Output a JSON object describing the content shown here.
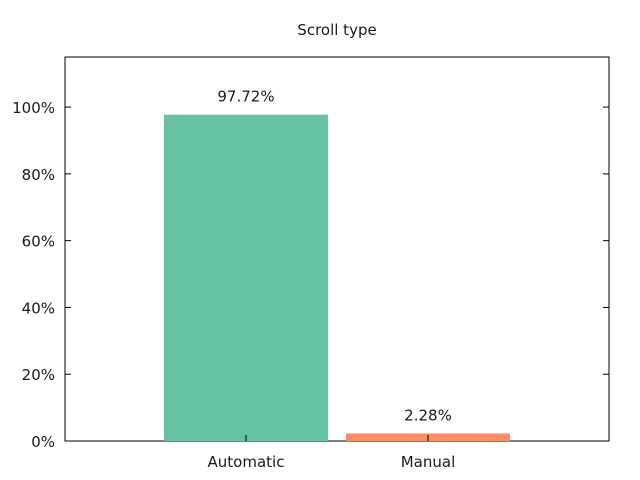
{
  "chart_data": {
    "type": "bar",
    "title": "Scroll type",
    "xlabel": "",
    "ylabel": "",
    "categories": [
      "Automatic",
      "Manual"
    ],
    "values": [
      97.72,
      2.28
    ],
    "value_labels": [
      "97.72%",
      "2.28%"
    ],
    "colors": [
      "#66c2a5",
      "#fc8d62"
    ],
    "ylim": [
      0,
      115
    ],
    "yticks": [
      0,
      20,
      40,
      60,
      80,
      100
    ],
    "ytick_labels": [
      "0%",
      "20%",
      "40%",
      "60%",
      "80%",
      "100%"
    ],
    "grid": false,
    "legend": "none"
  }
}
